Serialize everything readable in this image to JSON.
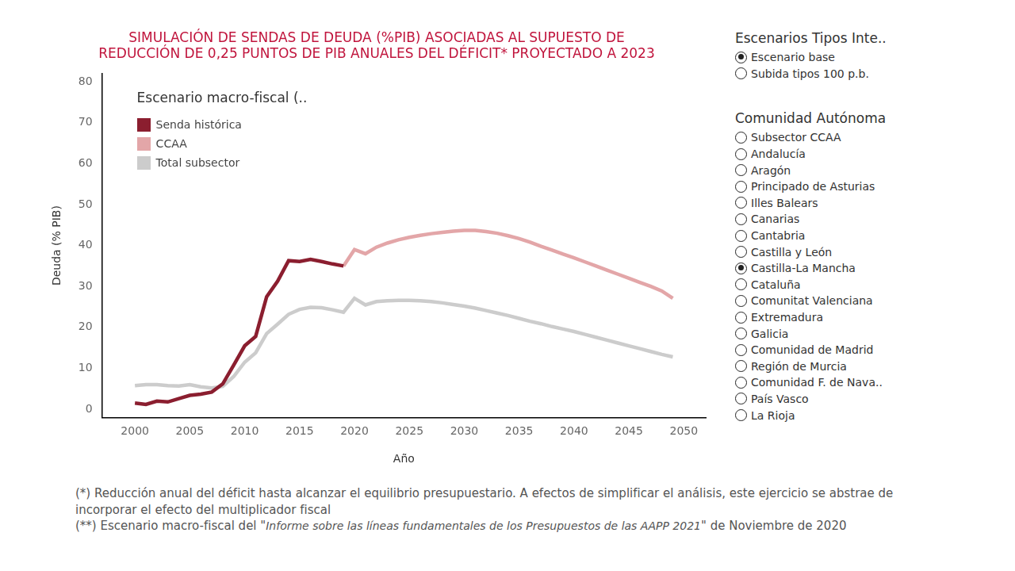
{
  "chart_data": {
    "type": "line",
    "title": [
      "SIMULACIÓN DE SENDAS DE DEUDA (%PIB) ASOCIADAS AL SUPUESTO DE",
      "REDUCCIÓN DE 0,25 PUNTOS DE PIB ANUALES DEL DÉFICIT* PROYECTADO A 2023"
    ],
    "x_label": "Año",
    "y_label": "Deuda (% PIB)",
    "legend_title": "Escenario macro-fiscal (..",
    "legend": "upper left",
    "grid": false,
    "x": [
      2000,
      2001,
      2002,
      2003,
      2004,
      2005,
      2006,
      2007,
      2008,
      2009,
      2010,
      2011,
      2012,
      2013,
      2014,
      2015,
      2016,
      2017,
      2018,
      2019,
      2020,
      2021,
      2022,
      2023,
      2024,
      2025,
      2026,
      2027,
      2028,
      2029,
      2030,
      2031,
      2032,
      2033,
      2034,
      2035,
      2036,
      2037,
      2038,
      2039,
      2040,
      2041,
      2042,
      2043,
      2044,
      2045,
      2046,
      2047,
      2048,
      2049
    ],
    "xlim": [
      1997,
      2052
    ],
    "xticks": [
      2000,
      2005,
      2010,
      2015,
      2020,
      2025,
      2030,
      2035,
      2040,
      2045,
      2050
    ],
    "ylim": [
      -2,
      82
    ],
    "yticks": [
      0,
      10,
      20,
      30,
      40,
      50,
      60,
      70,
      80
    ],
    "series": [
      {
        "name": "Senda histórica",
        "color": "#8b1e2f",
        "values": [
          1.5,
          1.2,
          2.0,
          1.8,
          2.6,
          3.4,
          3.7,
          4.2,
          6.2,
          10.8,
          15.5,
          17.8,
          27.5,
          31.3,
          36.3,
          36.1,
          36.6,
          36.1,
          35.5,
          35.0,
          null,
          null,
          null,
          null,
          null,
          null,
          null,
          null,
          null,
          null,
          null,
          null,
          null,
          null,
          null,
          null,
          null,
          null,
          null,
          null,
          null,
          null,
          null,
          null,
          null,
          null,
          null,
          null,
          null,
          null
        ]
      },
      {
        "name": "CCAA",
        "color": "#e3a6a8",
        "values": [
          null,
          null,
          null,
          null,
          null,
          null,
          null,
          null,
          null,
          null,
          null,
          null,
          null,
          null,
          null,
          null,
          null,
          null,
          null,
          35.0,
          39.0,
          38.0,
          39.6,
          40.6,
          41.4,
          42.0,
          42.5,
          42.9,
          43.2,
          43.5,
          43.7,
          43.7,
          43.4,
          43.0,
          42.4,
          41.7,
          40.8,
          39.8,
          38.9,
          37.9,
          37.0,
          36.0,
          35.0,
          34.0,
          33.0,
          32.0,
          31.0,
          30.0,
          28.9,
          27.1
        ]
      },
      {
        "name": "Total subsector",
        "color": "#cccccc",
        "values": [
          5.8,
          6.0,
          6.0,
          5.8,
          5.7,
          6.0,
          5.5,
          5.2,
          5.6,
          8.0,
          11.5,
          13.8,
          18.5,
          20.8,
          23.2,
          24.4,
          24.9,
          24.8,
          24.3,
          23.7,
          27.1,
          25.5,
          26.3,
          26.5,
          26.6,
          26.6,
          26.5,
          26.3,
          26.0,
          25.6,
          25.2,
          24.7,
          24.1,
          23.5,
          22.9,
          22.2,
          21.5,
          20.9,
          20.2,
          19.6,
          19.0,
          18.3,
          17.6,
          16.9,
          16.2,
          15.5,
          14.8,
          14.1,
          13.4,
          12.8
        ]
      }
    ]
  },
  "controls": [
    {
      "title": "Escenarios Tipos Inte..",
      "options": [
        "Escenario base",
        "Subida tipos 100 p.b."
      ],
      "selected": "Escenario base"
    },
    {
      "title": "Comunidad Autónoma",
      "options": [
        "Subsector CCAA",
        "Andalucía",
        "Aragón",
        "Principado de Asturias",
        "Illes Balears",
        "Canarias",
        "Cantabria",
        "Castilla y León",
        "Castilla-La Mancha",
        "Cataluña",
        "Comunitat Valenciana",
        "Extremadura",
        "Galicia",
        "Comunidad de Madrid",
        "Región de Murcia",
        "Comunidad F. de Nava..",
        "País Vasco",
        "La Rioja"
      ],
      "selected": "Castilla-La Mancha"
    }
  ],
  "notes": [
    [
      "(*) Reducción anual del déficit hasta alcanzar el equilibrio presupuestario. A efectos de simplificar el análisis, este ejercicio se abstrae de incorporar el efecto del multiplicador fiscal"
    ],
    [
      "(**) Escenario macro-fiscal del \"",
      "Informe sobre las líneas fundamentales de los Presupuestos de las AAPP 2021",
      "\" de Noviembre de 2020"
    ]
  ]
}
